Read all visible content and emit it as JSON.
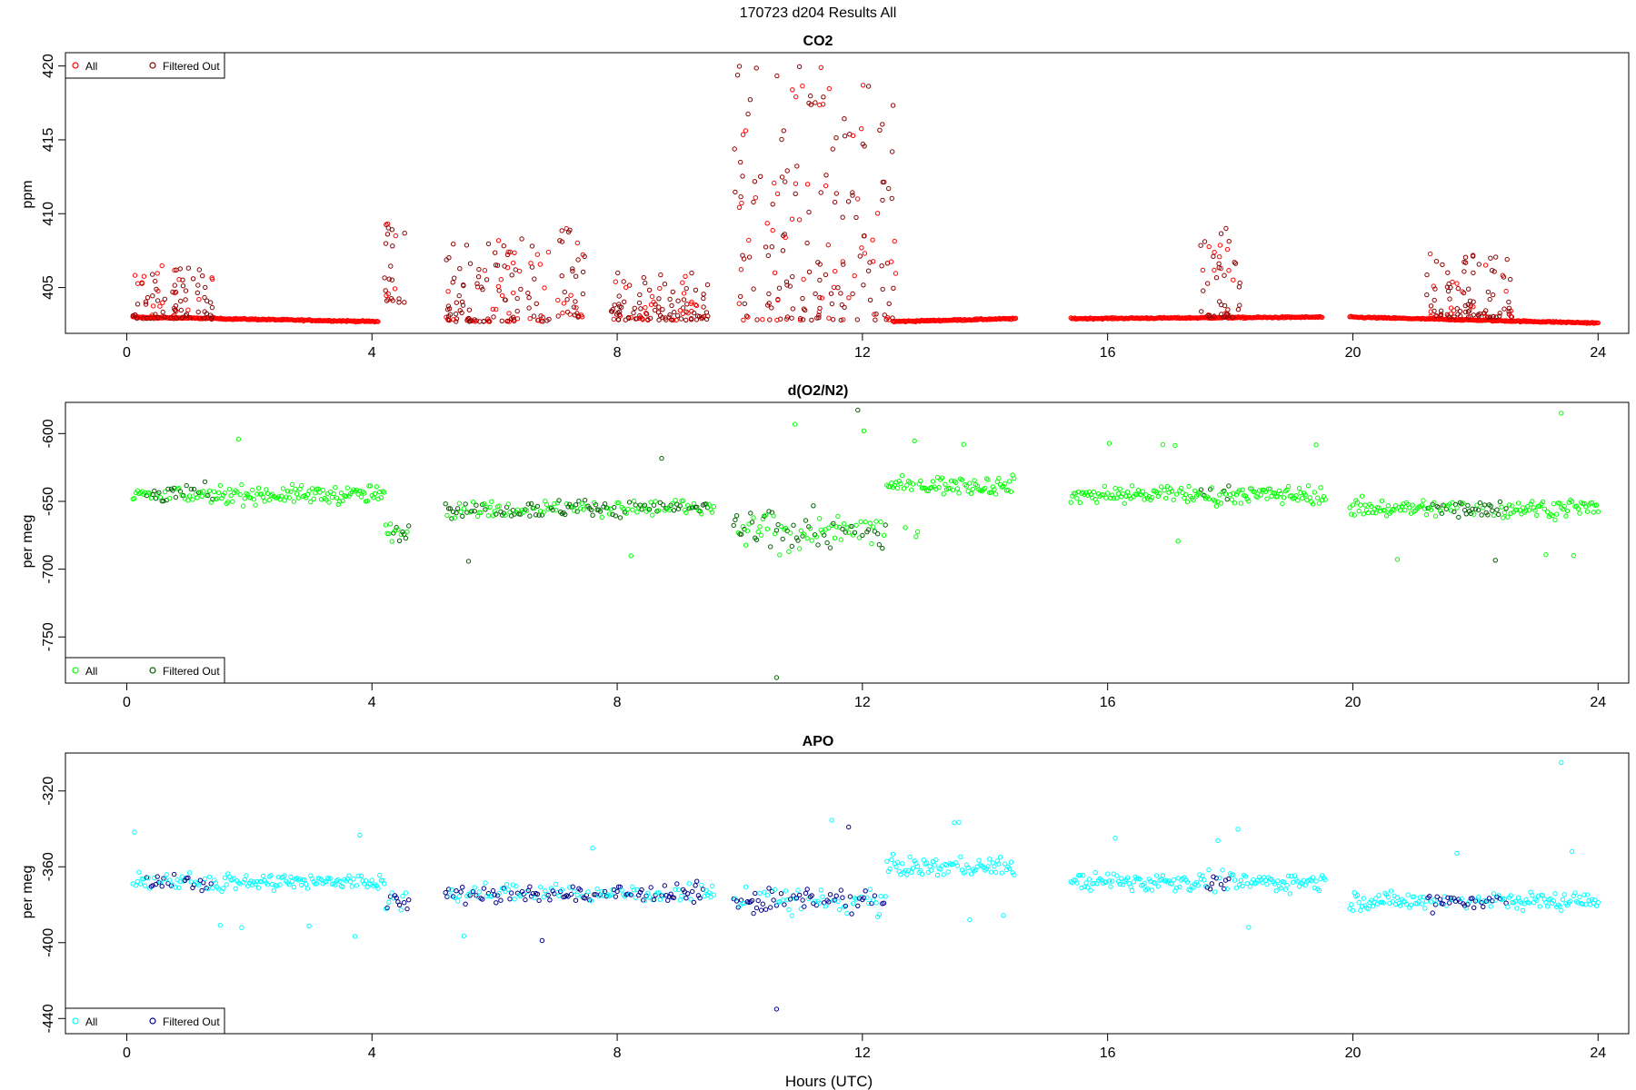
{
  "figure": {
    "suptitle": "170723   d204   Results All",
    "xlabel": "Hours (UTC)"
  },
  "chart_data": [
    {
      "type": "scatter",
      "title": "CO2",
      "xlabel": "",
      "ylabel": "ppm",
      "xlim": [
        -1,
        24.5
      ],
      "ylim": [
        401.9,
        420.9
      ],
      "xticks": [
        0,
        4,
        8,
        12,
        16,
        20,
        24
      ],
      "yticks": [
        405,
        410,
        415,
        420
      ],
      "grid": false,
      "legend_placement": "top-left",
      "series": [
        {
          "name": "All",
          "color": "#ff0000",
          "marker": "open-circle"
        },
        {
          "name": "Filtered Out",
          "color": "#8b0000",
          "marker": "open-circle"
        }
      ],
      "gaps_hours": [
        [
          4.6,
          5.2
        ],
        [
          9.6,
          9.9
        ],
        [
          14.5,
          15.4
        ],
        [
          19.55,
          19.95
        ]
      ],
      "baseline_segments": [
        {
          "x": [
            0.1,
            4.1
          ],
          "y": [
            403.0,
            402.7
          ]
        },
        {
          "x": [
            12.5,
            14.5
          ],
          "y": [
            402.7,
            402.9
          ]
        },
        {
          "x": [
            15.4,
            19.5
          ],
          "y": [
            402.9,
            403.0
          ]
        },
        {
          "x": [
            19.95,
            24.0
          ],
          "y": [
            403.0,
            402.6
          ]
        }
      ],
      "excursions": [
        {
          "x": [
            0.1,
            1.4
          ],
          "y_range": [
            402.9,
            406.5
          ]
        },
        {
          "x": [
            4.2,
            4.55
          ],
          "y_range": [
            404.0,
            409.6
          ]
        },
        {
          "x": [
            5.2,
            6.9
          ],
          "y_range": [
            402.7,
            408.3
          ]
        },
        {
          "x": [
            7.0,
            7.5
          ],
          "y_range": [
            403.0,
            409.6
          ]
        },
        {
          "x": [
            7.9,
            9.5
          ],
          "y_range": [
            402.8,
            406.0
          ]
        },
        {
          "x": [
            9.9,
            12.6
          ],
          "y_range": [
            402.8,
            420.0
          ]
        },
        {
          "x": [
            17.5,
            18.2
          ],
          "y_range": [
            403.0,
            409.1
          ]
        },
        {
          "x": [
            21.2,
            22.6
          ],
          "y_range": [
            403.0,
            407.3
          ]
        }
      ]
    },
    {
      "type": "scatter",
      "title": "d(O2/N2)",
      "xlabel": "",
      "ylabel": "per meg",
      "xlim": [
        -1,
        24.5
      ],
      "ylim": [
        -784,
        -577
      ],
      "xticks": [
        0,
        4,
        8,
        12,
        16,
        20,
        24
      ],
      "yticks": [
        -750,
        -700,
        -650,
        -600
      ],
      "grid": false,
      "legend_placement": "bottom-left",
      "series": [
        {
          "name": "All",
          "color": "#00ff00",
          "marker": "open-circle"
        },
        {
          "name": "Filtered Out",
          "color": "#006400",
          "marker": "open-circle"
        }
      ],
      "gaps_hours": [
        [
          4.6,
          5.2
        ],
        [
          9.6,
          9.9
        ],
        [
          14.5,
          15.4
        ],
        [
          19.55,
          19.95
        ]
      ],
      "range_summary": {
        "typical": [
          -680,
          -620
        ],
        "extreme_low": -780,
        "extreme_high": -585
      }
    },
    {
      "type": "scatter",
      "title": "APO",
      "xlabel": "Hours (UTC)",
      "ylabel": "per meg",
      "xlim": [
        -1,
        24.5
      ],
      "ylim": [
        -448,
        -300
      ],
      "xticks": [
        0,
        4,
        8,
        12,
        16,
        20,
        24
      ],
      "yticks": [
        -440,
        -400,
        -360,
        -320
      ],
      "grid": false,
      "legend_placement": "bottom-left",
      "series": [
        {
          "name": "All",
          "color": "#00ffff",
          "marker": "open-circle"
        },
        {
          "name": "Filtered Out",
          "color": "#00008b",
          "marker": "open-circle"
        }
      ],
      "gaps_hours": [
        [
          4.6,
          5.2
        ],
        [
          9.6,
          9.9
        ],
        [
          14.5,
          15.4
        ],
        [
          19.55,
          19.95
        ]
      ],
      "range_summary": {
        "typical": [
          -395,
          -345
        ],
        "extreme_low": -435,
        "extreme_high": -305
      }
    }
  ]
}
